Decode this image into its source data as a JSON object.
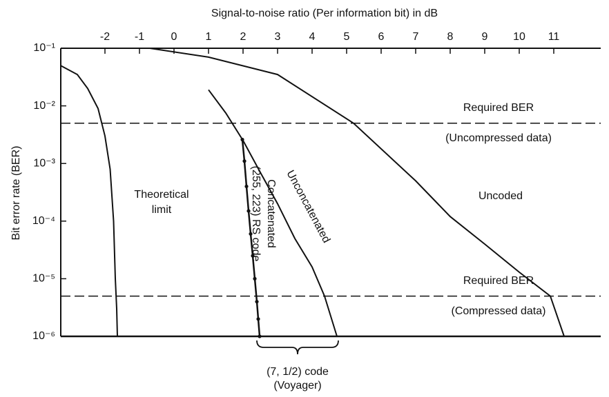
{
  "chart_data": {
    "type": "line",
    "x_label": "Signal-to-noise ratio (Per information bit) in dB",
    "y_label": "Bit error rate (BER)",
    "xlim": [
      -3.28,
      12.36
    ],
    "xticks": [
      -2,
      -1,
      0,
      1,
      2,
      3,
      4,
      5,
      6,
      7,
      8,
      9,
      10,
      11
    ],
    "ylim": [
      1e-06,
      0.1
    ],
    "log_y": true,
    "yticks": [
      {
        "value": 0.1,
        "label": "10⁻¹"
      },
      {
        "value": 0.01,
        "label": "10⁻²"
      },
      {
        "value": 0.001,
        "label": "10⁻³"
      },
      {
        "value": 0.0001,
        "label": "10⁻⁴"
      },
      {
        "value": 1e-05,
        "label": "10⁻⁵"
      },
      {
        "value": 1e-06,
        "label": "10⁻⁶"
      }
    ],
    "series": [
      {
        "name": [
          "Theoretical",
          "limit"
        ],
        "color": "#111111",
        "x": [
          -3.28,
          -2.8,
          -2.5,
          -2.2,
          -2.0,
          -1.85,
          -1.75,
          -1.7,
          -1.66,
          -1.64
        ],
        "values": [
          0.05,
          0.035,
          0.02,
          0.009,
          0.003,
          0.0008,
          0.0001,
          1e-05,
          3e-06,
          1e-06
        ]
      },
      {
        "name": [
          "Uncoded"
        ],
        "color": "#111111",
        "x": [
          -0.7,
          1,
          3,
          5.2,
          7,
          8,
          9,
          10,
          10.9,
          11.3
        ],
        "values": [
          0.1,
          0.07,
          0.035,
          0.005,
          0.0005,
          0.00012,
          4e-05,
          1.3e-05,
          5e-06,
          1e-06
        ]
      },
      {
        "name": [
          "Unconcatenated"
        ],
        "color": "#111111",
        "x": [
          1,
          1.5,
          2,
          2.5,
          3,
          3.5,
          4,
          4.36,
          4.72
        ],
        "values": [
          0.019,
          0.0075,
          0.0025,
          0.0007,
          0.0002,
          5e-05,
          1.6e-05,
          5e-06,
          1e-06
        ]
      },
      {
        "name": [
          "Concatenated",
          "(255, 223) RS code"
        ],
        "color": "#111111",
        "markers": true,
        "x": [
          1.98,
          2.04,
          2.1,
          2.16,
          2.22,
          2.28,
          2.34,
          2.4,
          2.44,
          2.48
        ],
        "values": [
          0.0026,
          0.0011,
          0.0004,
          0.00015,
          6e-05,
          2.5e-05,
          1e-05,
          4e-06,
          2e-06,
          1e-06
        ]
      }
    ],
    "reference_lines": [
      {
        "value": 0.005,
        "label": [
          "Required BER",
          "(Uncompressed data)"
        ]
      },
      {
        "value": 5e-06,
        "label": [
          "Required BER",
          "(Compressed data)"
        ]
      }
    ],
    "brace_label": [
      "(7, 1/2) code",
      "(Voyager)"
    ]
  }
}
